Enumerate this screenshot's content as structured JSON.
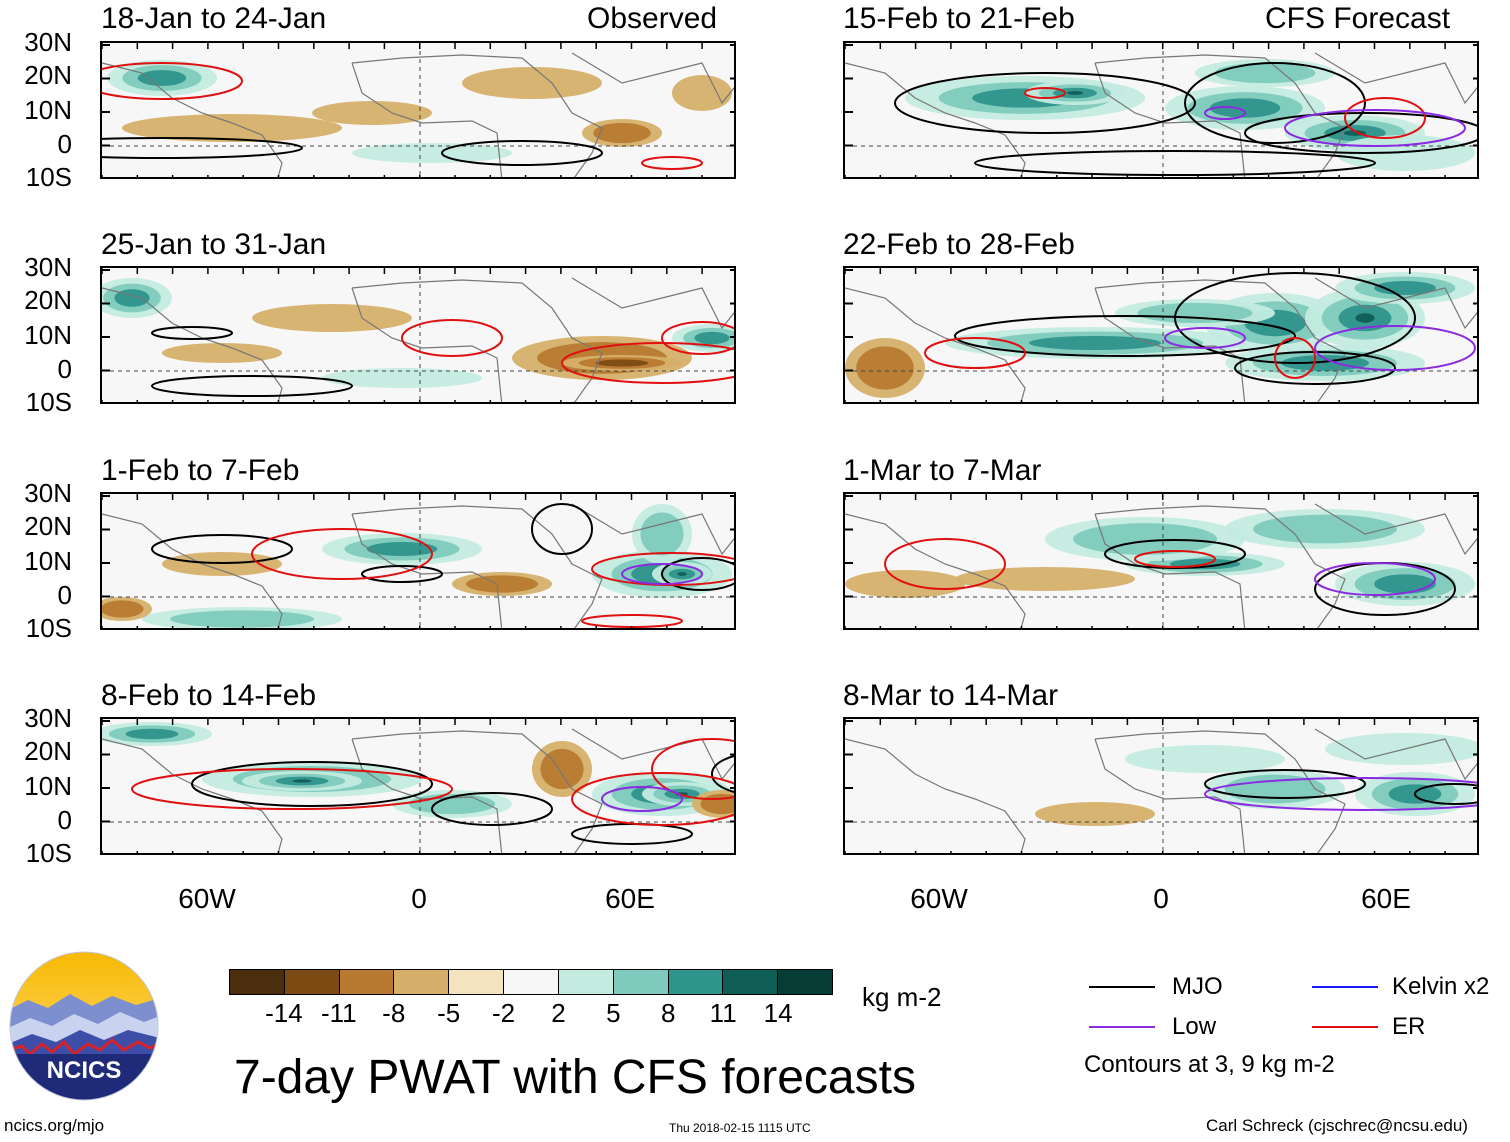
{
  "panels": [
    {
      "id": "p1",
      "title": "18-Jan to 24-Jan",
      "tag": "Observed"
    },
    {
      "id": "p2",
      "title": "15-Feb to 21-Feb",
      "tag": "CFS Forecast"
    },
    {
      "id": "p3",
      "title": "25-Jan to 31-Jan",
      "tag": ""
    },
    {
      "id": "p4",
      "title": "22-Feb to 28-Feb",
      "tag": ""
    },
    {
      "id": "p5",
      "title": "1-Feb to 7-Feb",
      "tag": ""
    },
    {
      "id": "p6",
      "title": "1-Mar to 7-Mar",
      "tag": ""
    },
    {
      "id": "p7",
      "title": "8-Feb to 14-Feb",
      "tag": ""
    },
    {
      "id": "p8",
      "title": "8-Mar to 14-Mar",
      "tag": ""
    }
  ],
  "lat_labels": [
    "30N",
    "20N",
    "10N",
    "0",
    "10S"
  ],
  "lon_labels": [
    "60W",
    "0",
    "60E"
  ],
  "colorbar": {
    "ticks": [
      "-14",
      "-11",
      "-8",
      "-5",
      "-2",
      "2",
      "5",
      "8",
      "11",
      "14"
    ],
    "colors": [
      "#4a2e0e",
      "#7c4b14",
      "#b87a30",
      "#d6b06a",
      "#f3e3bf",
      "#f7f7f7",
      "#c4ebe0",
      "#7fcbbd",
      "#2f948c",
      "#0e5e56",
      "#053c35"
    ],
    "units": "kg m-2"
  },
  "legend": {
    "items": [
      {
        "label": "MJO",
        "color": "#000000"
      },
      {
        "label": "Kelvin x2",
        "color": "#1a1aff"
      },
      {
        "label": "Low",
        "color": "#8a2be2"
      },
      {
        "label": "ER",
        "color": "#e01010"
      }
    ],
    "note": "Contours at 3, 9 kg m-2"
  },
  "main_title": "7-day PWAT with CFS forecasts",
  "logo_text": "NCICS",
  "footer": {
    "left": "ncics.org/mjo",
    "center": "Thu 2018-02-15 1115 UTC",
    "right": "Carl Schreck (cjschrec@ncsu.edu)"
  }
}
